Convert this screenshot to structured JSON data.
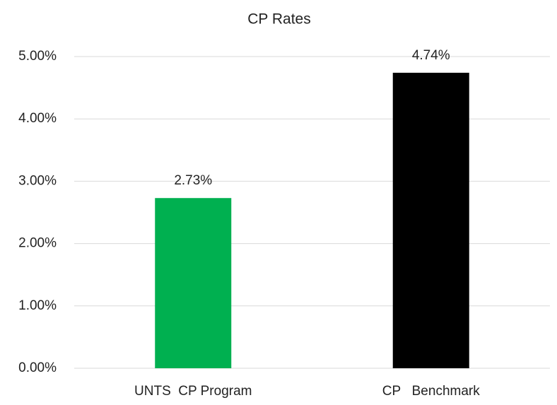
{
  "chart_data": {
    "type": "bar",
    "title": "CP Rates",
    "categories": [
      "UNTS  CP Program",
      "CP   Benchmark"
    ],
    "values": [
      2.73,
      4.74
    ],
    "value_labels": [
      "2.73%",
      "4.74%"
    ],
    "colors": [
      "#00b050",
      "#000000"
    ],
    "ylim": [
      0,
      5
    ],
    "yticks": [
      {
        "value": 0,
        "label": "0.00%"
      },
      {
        "value": 1,
        "label": "1.00%"
      },
      {
        "value": 2,
        "label": "2.00%"
      },
      {
        "value": 3,
        "label": "3.00%"
      },
      {
        "value": 4,
        "label": "4.00%"
      },
      {
        "value": 5,
        "label": "5.00%"
      }
    ],
    "grid": true
  }
}
